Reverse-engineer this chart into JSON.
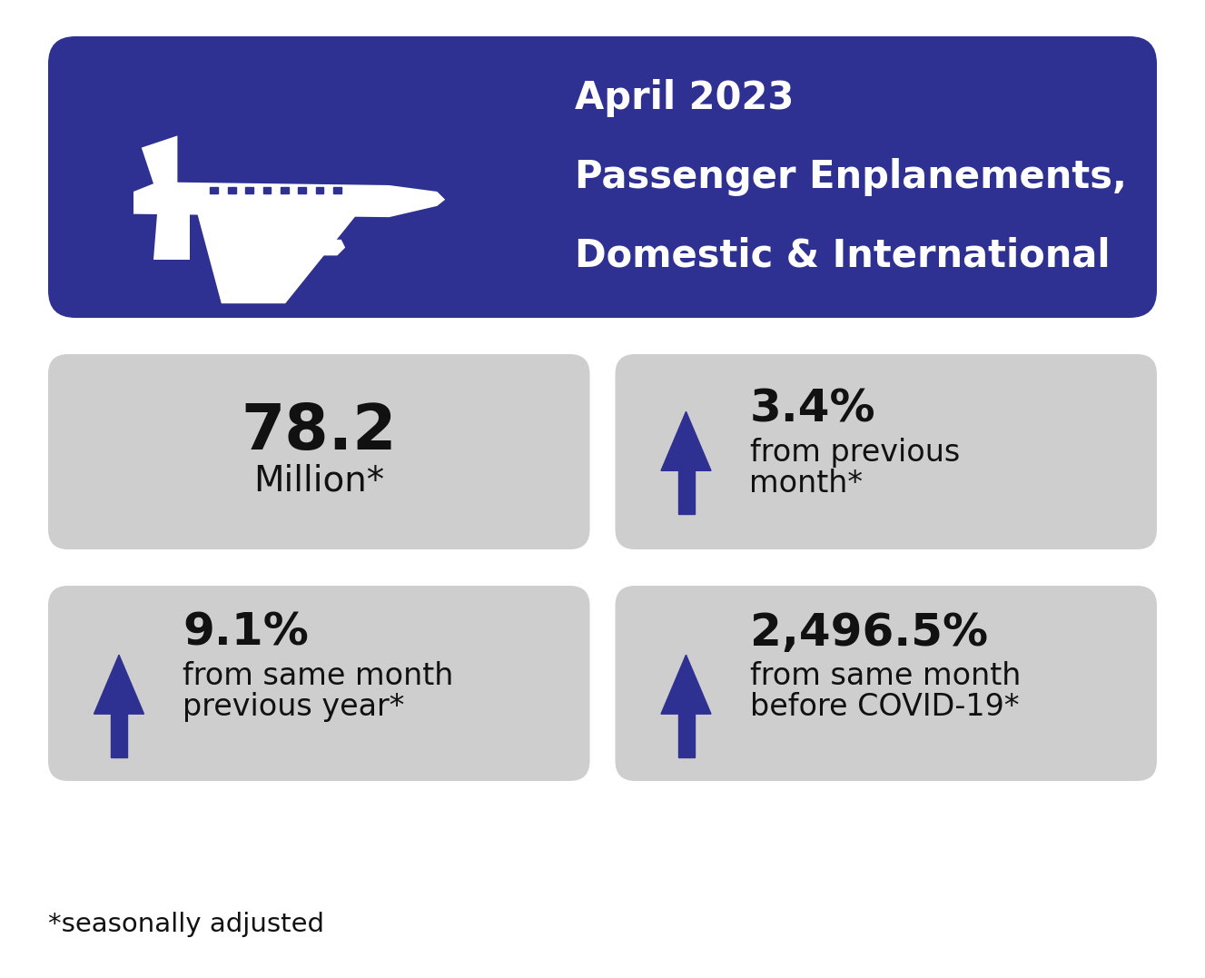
{
  "title_line1": "April 2023",
  "title_line2": "Passenger Enplanements,",
  "title_line3": "Domestic & International",
  "header_bg_color": "#2E3192",
  "card_bg_color": "#CECECE",
  "arrow_color": "#2E3192",
  "text_color_dark": "#111111",
  "text_color_white": "#FFFFFF",
  "card1_big": "78.2",
  "card1_small": "Million*",
  "card2_pct": "3.4%",
  "card2_text1": "from previous",
  "card2_text2": "month*",
  "card3_pct": "9.1%",
  "card3_text1": "from same month",
  "card3_text2": "previous year*",
  "card4_pct": "2,496.5%",
  "card4_text1": "from same month",
  "card4_text2": "before COVID-19*",
  "footnote": "*seasonally adjusted",
  "background_color": "#FFFFFF",
  "fig_w": 13.27,
  "fig_h": 10.77,
  "dpi": 100
}
